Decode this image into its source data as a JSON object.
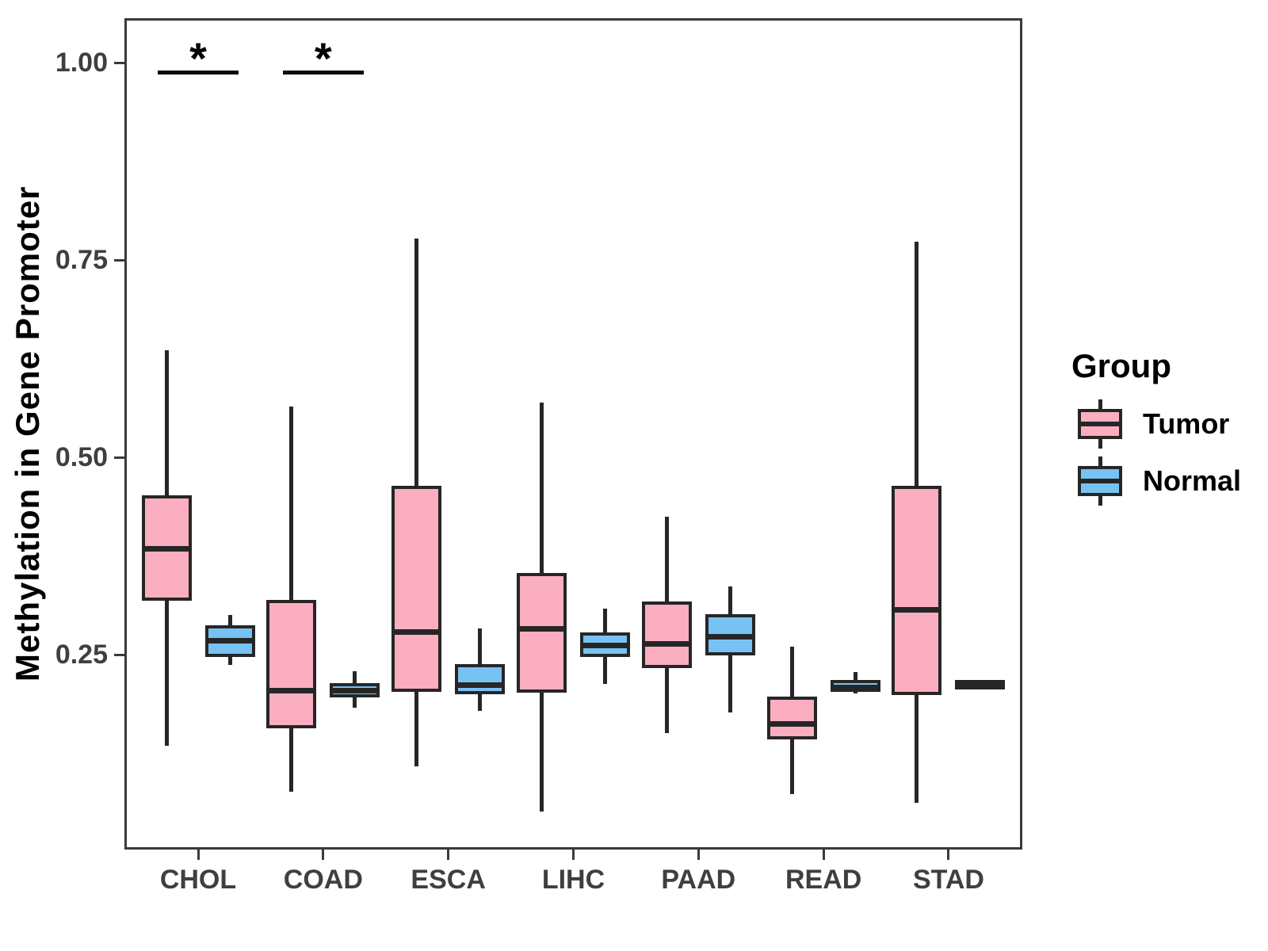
{
  "chart_data": {
    "type": "boxplot",
    "title": "",
    "ylabel": "Methylation in Gene Promoter",
    "xlabel": "",
    "legend_title": "Group",
    "legend_position": "right",
    "grid": false,
    "ylim": [
      0.0,
      1.05
    ],
    "yticks": [
      {
        "label": "1.00",
        "value": 1.0
      },
      {
        "label": "0.75",
        "value": 0.75
      },
      {
        "label": "0.50",
        "value": 0.5
      },
      {
        "label": "0.25",
        "value": 0.25
      }
    ],
    "categories": [
      "CHOL",
      "COAD",
      "ESCA",
      "LIHC",
      "PAAD",
      "READ",
      "STAD"
    ],
    "line_color": "#262626",
    "groups": [
      {
        "name": "Tumor",
        "fill": "#FBAEC0",
        "boxes": [
          {
            "category": "CHOL",
            "whisker_low": 0.135,
            "q1": 0.318,
            "median": 0.384,
            "q3": 0.452,
            "whisker_high": 0.636
          },
          {
            "category": "COAD",
            "whisker_low": 0.076,
            "q1": 0.157,
            "median": 0.204,
            "q3": 0.319,
            "whisker_high": 0.564
          },
          {
            "category": "ESCA",
            "whisker_low": 0.108,
            "q1": 0.203,
            "median": 0.279,
            "q3": 0.464,
            "whisker_high": 0.777
          },
          {
            "category": "LIHC",
            "whisker_low": 0.051,
            "q1": 0.202,
            "median": 0.283,
            "q3": 0.353,
            "whisker_high": 0.569
          },
          {
            "category": "PAAD",
            "whisker_low": 0.151,
            "q1": 0.233,
            "median": 0.264,
            "q3": 0.317,
            "whisker_high": 0.425
          },
          {
            "category": "READ",
            "whisker_low": 0.073,
            "q1": 0.143,
            "median": 0.162,
            "q3": 0.197,
            "whisker_high": 0.26
          },
          {
            "category": "STAD",
            "whisker_low": 0.062,
            "q1": 0.199,
            "median": 0.307,
            "q3": 0.464,
            "whisker_high": 0.773
          }
        ]
      },
      {
        "name": "Normal",
        "fill": "#78C2F3",
        "boxes": [
          {
            "category": "CHOL",
            "whisker_low": 0.237,
            "q1": 0.247,
            "median": 0.268,
            "q3": 0.287,
            "whisker_high": 0.3
          },
          {
            "category": "COAD",
            "whisker_low": 0.183,
            "q1": 0.196,
            "median": 0.204,
            "q3": 0.214,
            "whisker_high": 0.229
          },
          {
            "category": "ESCA",
            "whisker_low": 0.179,
            "q1": 0.2,
            "median": 0.211,
            "q3": 0.238,
            "whisker_high": 0.283
          },
          {
            "category": "LIHC",
            "whisker_low": 0.213,
            "q1": 0.247,
            "median": 0.262,
            "q3": 0.278,
            "whisker_high": 0.308
          },
          {
            "category": "PAAD",
            "whisker_low": 0.177,
            "q1": 0.249,
            "median": 0.273,
            "q3": 0.301,
            "whisker_high": 0.336
          },
          {
            "category": "READ",
            "whisker_low": 0.201,
            "q1": 0.203,
            "median": 0.208,
            "q3": 0.218,
            "whisker_high": 0.228
          },
          {
            "category": "STAD",
            "whisker_low": 0.206,
            "q1": 0.206,
            "median": 0.212,
            "q3": 0.218,
            "whisker_high": 0.218
          }
        ]
      }
    ],
    "significance": [
      {
        "category": "CHOL",
        "label": "*",
        "bar_value": 0.987
      },
      {
        "category": "COAD",
        "label": "*",
        "bar_value": 0.987
      }
    ]
  }
}
